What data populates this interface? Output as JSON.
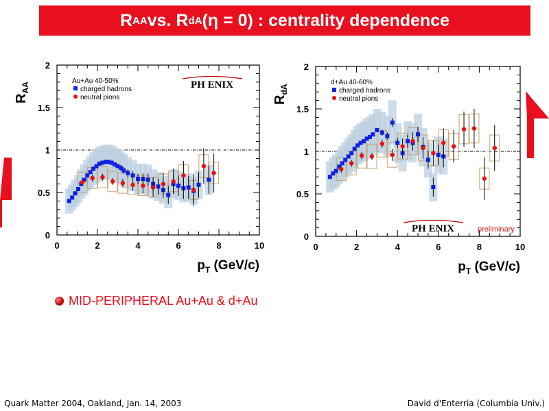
{
  "slide": {
    "title_a": "R",
    "title_a_sub": "AA",
    "title_b": " vs. R",
    "title_b_sub": "dA",
    "title_c": " (η = 0) : centrality dependence",
    "bullet_text": "MID-PERIPHERAL Au+Au & d+Au",
    "footer_left": "Quark Matter 2004, Oakland, Jan. 14, 2003",
    "footer_right": "David d'Enterria (Columbia Univ.)",
    "colors": {
      "title_bg": "#e8101e",
      "accent": "#e8101e",
      "hadron": "#1020e0",
      "pion": "#e81010",
      "band": "#bcd0e0",
      "syst": "#c8a070"
    }
  },
  "chart_data": [
    {
      "type": "scatter",
      "ylabel": "R",
      "ylabel_sub": "AA",
      "xlabel": "p",
      "xlabel_sub": "T",
      "xlabel_unit": " (GeV/c)",
      "xlim": [
        0,
        10
      ],
      "ylim": [
        0,
        2
      ],
      "xticks": [
        "0",
        "2",
        "4",
        "6",
        "8",
        "10"
      ],
      "yticks": [
        "0",
        "0.5",
        "1",
        "1.5",
        "2"
      ],
      "reference_line": 1,
      "legend_title": "Au+Au 40-50%",
      "logo": "PH ENIX",
      "note": "",
      "series": [
        {
          "name": "charged hadrons",
          "marker": "square",
          "points": [
            [
              0.6,
              0.4
            ],
            [
              0.75,
              0.44
            ],
            [
              0.9,
              0.49
            ],
            [
              1.05,
              0.54
            ],
            [
              1.2,
              0.6
            ],
            [
              1.35,
              0.65
            ],
            [
              1.5,
              0.7
            ],
            [
              1.65,
              0.74
            ],
            [
              1.8,
              0.78
            ],
            [
              1.95,
              0.81
            ],
            [
              2.1,
              0.84
            ],
            [
              2.25,
              0.85
            ],
            [
              2.4,
              0.86
            ],
            [
              2.55,
              0.86
            ],
            [
              2.7,
              0.85
            ],
            [
              2.85,
              0.83
            ],
            [
              3.0,
              0.81
            ],
            [
              3.15,
              0.79
            ],
            [
              3.3,
              0.76
            ],
            [
              3.5,
              0.73
            ],
            [
              3.75,
              0.7
            ],
            [
              4.0,
              0.66
            ],
            [
              4.25,
              0.66
            ],
            [
              4.5,
              0.65
            ],
            [
              4.75,
              0.6
            ],
            [
              5.0,
              0.57
            ],
            [
              5.25,
              0.53
            ],
            [
              5.5,
              0.47
            ],
            [
              5.75,
              0.6
            ],
            [
              6.0,
              0.58
            ],
            [
              6.25,
              0.55
            ],
            [
              6.5,
              0.56
            ],
            [
              6.75,
              0.52
            ],
            [
              7.0,
              0.59
            ],
            [
              7.5,
              0.65
            ]
          ]
        },
        {
          "name": "neutral pions",
          "marker": "circle",
          "points": [
            [
              1.25,
              0.62
            ],
            [
              1.75,
              0.67
            ],
            [
              2.25,
              0.68
            ],
            [
              2.75,
              0.63
            ],
            [
              3.25,
              0.61
            ],
            [
              3.75,
              0.59
            ],
            [
              4.25,
              0.58
            ],
            [
              4.75,
              0.56
            ],
            [
              5.25,
              0.6
            ],
            [
              5.75,
              0.63
            ],
            [
              6.25,
              0.7
            ],
            [
              6.75,
              0.53
            ],
            [
              7.25,
              0.81
            ],
            [
              7.75,
              0.73
            ]
          ]
        }
      ]
    },
    {
      "type": "scatter",
      "ylabel": "R",
      "ylabel_sub": "dA",
      "xlabel": "p",
      "xlabel_sub": "T",
      "xlabel_unit": " (GeV/c)",
      "xlim": [
        0,
        10
      ],
      "ylim": [
        0,
        2
      ],
      "xticks": [
        "0",
        "2",
        "4",
        "6",
        "8",
        "10"
      ],
      "yticks": [
        "0",
        "0.5",
        "1",
        "1.5",
        "2"
      ],
      "reference_line": 1,
      "legend_title": "d+Au 40-60%",
      "logo": "PH ENIX",
      "note": "preliminary",
      "series": [
        {
          "name": "charged hadrons",
          "marker": "square",
          "points": [
            [
              0.7,
              0.7
            ],
            [
              0.85,
              0.74
            ],
            [
              1.0,
              0.77
            ],
            [
              1.15,
              0.82
            ],
            [
              1.3,
              0.86
            ],
            [
              1.45,
              0.9
            ],
            [
              1.6,
              0.94
            ],
            [
              1.75,
              0.98
            ],
            [
              1.9,
              1.03
            ],
            [
              2.05,
              1.07
            ],
            [
              2.2,
              1.1
            ],
            [
              2.35,
              1.12
            ],
            [
              2.5,
              1.15
            ],
            [
              2.65,
              1.17
            ],
            [
              2.8,
              1.2
            ],
            [
              3.0,
              1.25
            ],
            [
              3.25,
              1.22
            ],
            [
              3.5,
              1.18
            ],
            [
              3.75,
              1.34
            ],
            [
              4.0,
              1.1
            ],
            [
              4.25,
              0.98
            ],
            [
              4.5,
              1.12
            ],
            [
              4.75,
              1.1
            ],
            [
              5.0,
              1.2
            ],
            [
              5.25,
              1.05
            ],
            [
              5.5,
              0.9
            ],
            [
              5.75,
              0.58
            ],
            [
              6.0,
              0.96
            ],
            [
              6.25,
              0.94
            ]
          ]
        },
        {
          "name": "neutral pions",
          "marker": "circle",
          "points": [
            [
              1.25,
              0.79
            ],
            [
              1.75,
              0.86
            ],
            [
              2.25,
              0.95
            ],
            [
              2.75,
              0.94
            ],
            [
              3.25,
              1.09
            ],
            [
              3.75,
              0.96
            ],
            [
              4.25,
              1.06
            ],
            [
              4.75,
              1.12
            ],
            [
              5.25,
              1.04
            ],
            [
              5.75,
              0.98
            ],
            [
              6.25,
              1.1
            ],
            [
              6.75,
              1.06
            ],
            [
              7.25,
              1.26
            ],
            [
              7.75,
              1.27
            ],
            [
              8.25,
              0.68
            ],
            [
              8.75,
              1.04
            ]
          ]
        }
      ]
    }
  ]
}
